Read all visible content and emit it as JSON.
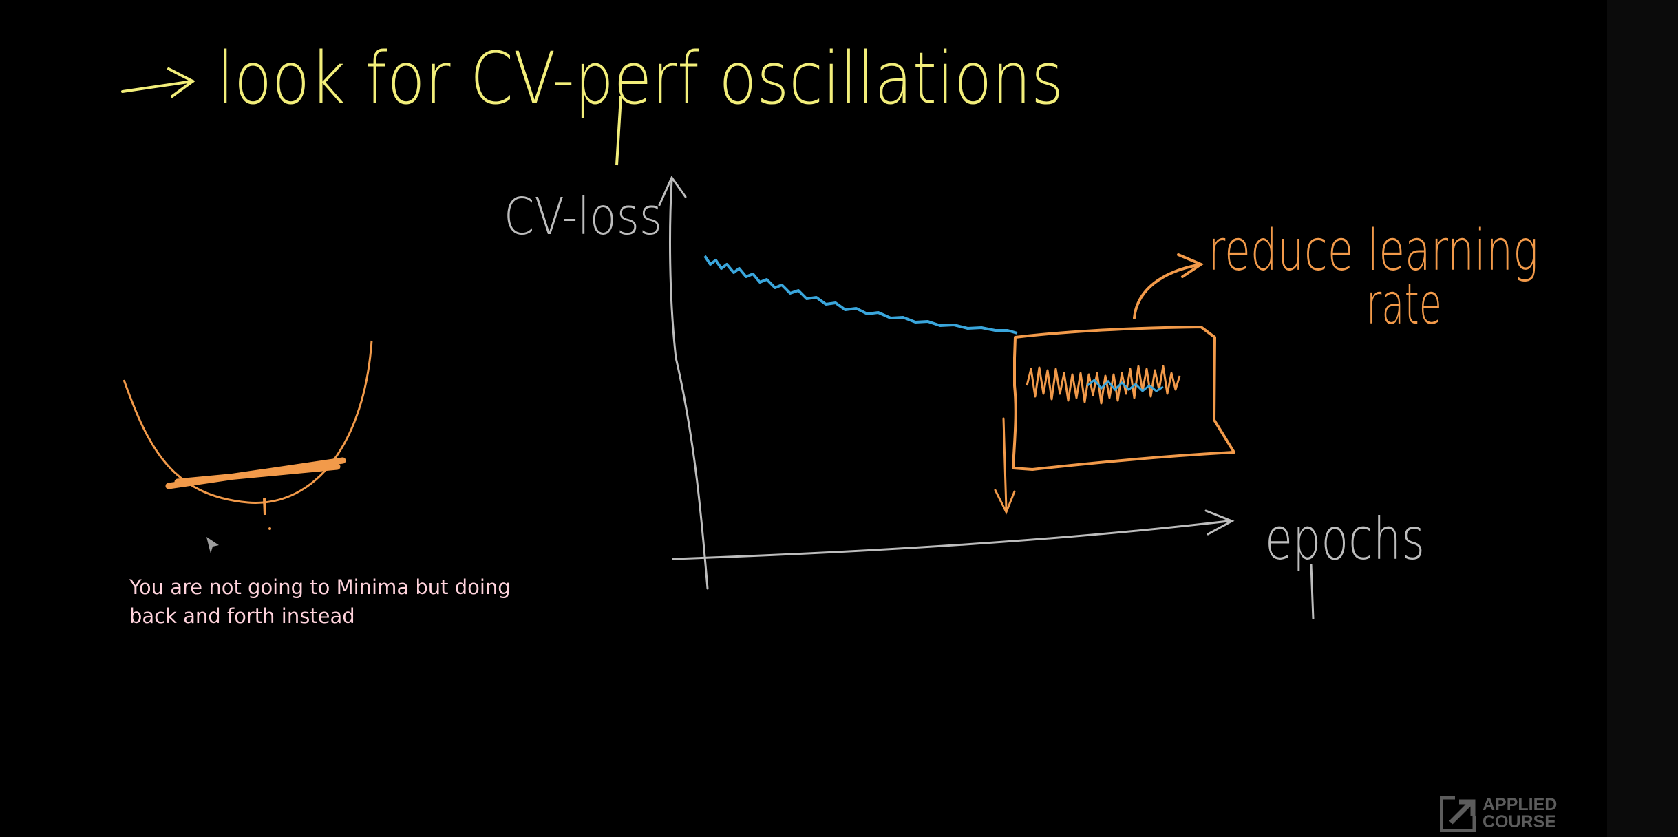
{
  "title": {
    "arrow_glyph": "→",
    "text": "look for CV-perf oscillations"
  },
  "graph": {
    "y_axis_label": "CV-loss",
    "x_axis_label": "epochs",
    "annotation": "reduce learning rate"
  },
  "caption": {
    "line1": "You are not going to Minima but doing",
    "line2": "back and forth instead"
  },
  "logo": {
    "line1": "APPLIED",
    "line2": "COURSE"
  },
  "colors": {
    "background": "#000000",
    "title_yellow": "#f2ee7a",
    "chalk_gray": "#bdbdbd",
    "curve_blue": "#3aa6dc",
    "marker_orange": "#f29a4a",
    "caption_pink": "#ffd3dc"
  }
}
